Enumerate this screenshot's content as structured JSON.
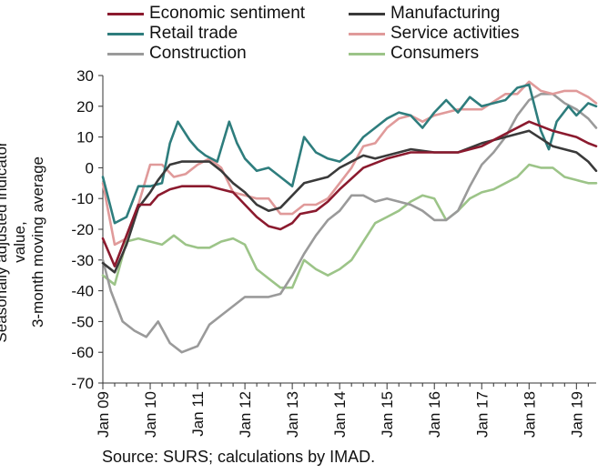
{
  "chart_data": {
    "type": "line",
    "xlabel": "",
    "ylabel": "Seasonally adjusted indicator value,",
    "ylabel2": "3-month moving average",
    "source": "Source: SURS; calculations by IMAD.",
    "ylim": [
      -70,
      30
    ],
    "yticks": [
      30,
      20,
      10,
      0,
      -10,
      -20,
      -30,
      -40,
      -50,
      -60,
      -70
    ],
    "xticks": [
      "Jan 09",
      "Jan 10",
      "Jan 11",
      "Jan 12",
      "Jan 13",
      "Jan 14",
      "Jan 15",
      "Jan 16",
      "Jan 17",
      "Jan 18",
      "Jan 19"
    ],
    "x_start": "Jan 09",
    "x_end": "Jun 19",
    "grid": false,
    "legend_position": "top",
    "series": [
      {
        "name": "Economic sentiment",
        "color": "#8b1a2e",
        "points": [
          [
            "Jan 09",
            -23
          ],
          [
            "Apr 09",
            -32
          ],
          [
            "Jul 09",
            -22
          ],
          [
            "Oct 09",
            -12
          ],
          [
            "Jan 10",
            -12
          ],
          [
            "Mar 10",
            -9
          ],
          [
            "Jun 10",
            -7
          ],
          [
            "Sep 10",
            -6
          ],
          [
            "Jan 11",
            -6
          ],
          [
            "Apr 11",
            -6
          ],
          [
            "Jul 11",
            -7
          ],
          [
            "Oct 11",
            -8
          ],
          [
            "Jan 12",
            -12
          ],
          [
            "Apr 12",
            -16
          ],
          [
            "Jul 12",
            -19
          ],
          [
            "Oct 12",
            -20
          ],
          [
            "Jan 13",
            -18
          ],
          [
            "Mar 13",
            -15
          ],
          [
            "Jul 13",
            -14
          ],
          [
            "Oct 13",
            -11
          ],
          [
            "Jan 14",
            -7
          ],
          [
            "Jul 14",
            0
          ],
          [
            "Jan 15",
            3
          ],
          [
            "Jul 15",
            5
          ],
          [
            "Jan 16",
            5
          ],
          [
            "Jul 16",
            5
          ],
          [
            "Jan 17",
            7
          ],
          [
            "Jul 17",
            11
          ],
          [
            "Jan 18",
            15
          ],
          [
            "Jul 18",
            12
          ],
          [
            "Jan 19",
            10
          ],
          [
            "Apr 19",
            8
          ],
          [
            "Jun 19",
            7
          ]
        ]
      },
      {
        "name": "Manufacturing",
        "color": "#3a3a3a",
        "points": [
          [
            "Jan 09",
            -31
          ],
          [
            "Apr 09",
            -34
          ],
          [
            "Jul 09",
            -25
          ],
          [
            "Oct 09",
            -13
          ],
          [
            "Jan 10",
            -8
          ],
          [
            "Mar 10",
            -4
          ],
          [
            "Jun 10",
            1
          ],
          [
            "Sep 10",
            2
          ],
          [
            "Jan 11",
            2
          ],
          [
            "Apr 11",
            2
          ],
          [
            "Jul 11",
            -1
          ],
          [
            "Oct 11",
            -5
          ],
          [
            "Jan 12",
            -8
          ],
          [
            "Apr 12",
            -12
          ],
          [
            "Jul 12",
            -14
          ],
          [
            "Oct 12",
            -13
          ],
          [
            "Jan 13",
            -9
          ],
          [
            "Apr 13",
            -5
          ],
          [
            "Jul 13",
            -4
          ],
          [
            "Oct 13",
            -3
          ],
          [
            "Jan 14",
            0
          ],
          [
            "Apr 14",
            2
          ],
          [
            "Jul 14",
            4
          ],
          [
            "Oct 14",
            3
          ],
          [
            "Jan 15",
            4
          ],
          [
            "Jul 15",
            6
          ],
          [
            "Jan 16",
            5
          ],
          [
            "Jul 16",
            5
          ],
          [
            "Jan 17",
            8
          ],
          [
            "Jul 17",
            10
          ],
          [
            "Jan 18",
            12
          ],
          [
            "Jul 18",
            7
          ],
          [
            "Oct 18",
            6
          ],
          [
            "Jan 19",
            5
          ],
          [
            "Apr 19",
            2
          ],
          [
            "Jun 19",
            -1
          ]
        ]
      },
      {
        "name": "Retail trade",
        "color": "#2e7d7d",
        "points": [
          [
            "Jan 09",
            -3
          ],
          [
            "Apr 09",
            -18
          ],
          [
            "Jul 09",
            -16
          ],
          [
            "Oct 09",
            -6
          ],
          [
            "Jan 10",
            -6
          ],
          [
            "Apr 10",
            -5
          ],
          [
            "Jun 10",
            8
          ],
          [
            "Aug 10",
            15
          ],
          [
            "Nov 10",
            9
          ],
          [
            "Jan 11",
            6
          ],
          [
            "Mar 11",
            4
          ],
          [
            "Jun 11",
            2
          ],
          [
            "Sep 11",
            15
          ],
          [
            "Nov 11",
            8
          ],
          [
            "Jan 12",
            3
          ],
          [
            "Apr 12",
            -1
          ],
          [
            "Jul 12",
            0
          ],
          [
            "Oct 12",
            -3
          ],
          [
            "Jan 13",
            -6
          ],
          [
            "Apr 13",
            10
          ],
          [
            "Jul 13",
            5
          ],
          [
            "Oct 13",
            3
          ],
          [
            "Jan 14",
            2
          ],
          [
            "Apr 14",
            5
          ],
          [
            "Jul 14",
            10
          ],
          [
            "Oct 14",
            13
          ],
          [
            "Jan 15",
            16
          ],
          [
            "Apr 15",
            18
          ],
          [
            "Jul 15",
            17
          ],
          [
            "Oct 15",
            13
          ],
          [
            "Jan 16",
            18
          ],
          [
            "Apr 16",
            22
          ],
          [
            "Jul 16",
            18
          ],
          [
            "Oct 16",
            23
          ],
          [
            "Jan 17",
            20
          ],
          [
            "Apr 17",
            21
          ],
          [
            "Jul 17",
            22
          ],
          [
            "Oct 17",
            26
          ],
          [
            "Jan 18",
            27
          ],
          [
            "Apr 18",
            12
          ],
          [
            "Jun 18",
            6
          ],
          [
            "Aug 18",
            15
          ],
          [
            "Nov 18",
            20
          ],
          [
            "Jan 19",
            17
          ],
          [
            "Apr 19",
            21
          ],
          [
            "Jun 19",
            20
          ]
        ]
      },
      {
        "name": "Service activities",
        "color": "#e09a9a",
        "points": [
          [
            "Jan 09",
            -5
          ],
          [
            "Apr 09",
            -25
          ],
          [
            "Jul 09",
            -23
          ],
          [
            "Oct 09",
            -12
          ],
          [
            "Jan 10",
            1
          ],
          [
            "Apr 10",
            1
          ],
          [
            "Jul 10",
            -3
          ],
          [
            "Oct 10",
            -2
          ],
          [
            "Jan 11",
            1
          ],
          [
            "Apr 11",
            3
          ],
          [
            "Jul 11",
            0
          ],
          [
            "Oct 11",
            -8
          ],
          [
            "Jan 12",
            -9
          ],
          [
            "Apr 12",
            -10
          ],
          [
            "Jul 12",
            -10
          ],
          [
            "Oct 12",
            -15
          ],
          [
            "Jan 13",
            -15
          ],
          [
            "Apr 13",
            -12
          ],
          [
            "Jul 13",
            -12
          ],
          [
            "Oct 13",
            -10
          ],
          [
            "Jan 14",
            -5
          ],
          [
            "Apr 14",
            0
          ],
          [
            "Jul 14",
            7
          ],
          [
            "Oct 14",
            8
          ],
          [
            "Jan 15",
            13
          ],
          [
            "Apr 15",
            16
          ],
          [
            "Jul 15",
            17
          ],
          [
            "Oct 15",
            15
          ],
          [
            "Jan 16",
            17
          ],
          [
            "Jul 16",
            19
          ],
          [
            "Jan 17",
            19
          ],
          [
            "Jul 17",
            24
          ],
          [
            "Oct 17",
            24
          ],
          [
            "Jan 18",
            28
          ],
          [
            "Apr 18",
            25
          ],
          [
            "Jul 18",
            24
          ],
          [
            "Oct 18",
            25
          ],
          [
            "Jan 19",
            25
          ],
          [
            "Apr 19",
            23
          ],
          [
            "Jun 19",
            21
          ]
        ]
      },
      {
        "name": "Construction",
        "color": "#9a9a9a",
        "points": [
          [
            "Jan 09",
            -30
          ],
          [
            "Mar 09",
            -40
          ],
          [
            "Jun 09",
            -50
          ],
          [
            "Sep 09",
            -53
          ],
          [
            "Dec 09",
            -55
          ],
          [
            "Mar 10",
            -50
          ],
          [
            "Jun 10",
            -57
          ],
          [
            "Sep 10",
            -60
          ],
          [
            "Jan 11",
            -58
          ],
          [
            "Apr 11",
            -51
          ],
          [
            "Jul 11",
            -48
          ],
          [
            "Oct 11",
            -45
          ],
          [
            "Jan 12",
            -42
          ],
          [
            "Apr 12",
            -42
          ],
          [
            "Jul 12",
            -42
          ],
          [
            "Oct 12",
            -41
          ],
          [
            "Jan 13",
            -35
          ],
          [
            "Apr 13",
            -28
          ],
          [
            "Jul 13",
            -22
          ],
          [
            "Oct 13",
            -17
          ],
          [
            "Jan 14",
            -14
          ],
          [
            "Apr 14",
            -9
          ],
          [
            "Jul 14",
            -9
          ],
          [
            "Oct 14",
            -11
          ],
          [
            "Jan 15",
            -10
          ],
          [
            "Apr 15",
            -11
          ],
          [
            "Jul 15",
            -12
          ],
          [
            "Oct 15",
            -14
          ],
          [
            "Jan 16",
            -17
          ],
          [
            "Apr 16",
            -17
          ],
          [
            "Jul 16",
            -14
          ],
          [
            "Oct 16",
            -6
          ],
          [
            "Jan 17",
            1
          ],
          [
            "Apr 17",
            5
          ],
          [
            "Jul 17",
            10
          ],
          [
            "Oct 17",
            17
          ],
          [
            "Jan 18",
            22
          ],
          [
            "Apr 18",
            24
          ],
          [
            "Jul 18",
            24
          ],
          [
            "Oct 18",
            21
          ],
          [
            "Jan 19",
            19
          ],
          [
            "Apr 19",
            16
          ],
          [
            "Jun 19",
            13
          ]
        ]
      },
      {
        "name": "Consumers",
        "color": "#9cc488",
        "points": [
          [
            "Jan 09",
            -35
          ],
          [
            "Apr 09",
            -38
          ],
          [
            "Jul 09",
            -24
          ],
          [
            "Oct 09",
            -23
          ],
          [
            "Jan 10",
            -24
          ],
          [
            "Apr 10",
            -25
          ],
          [
            "Jul 10",
            -22
          ],
          [
            "Oct 10",
            -25
          ],
          [
            "Jan 11",
            -26
          ],
          [
            "Apr 11",
            -26
          ],
          [
            "Jul 11",
            -24
          ],
          [
            "Oct 11",
            -23
          ],
          [
            "Jan 12",
            -25
          ],
          [
            "Apr 12",
            -33
          ],
          [
            "Jul 12",
            -36
          ],
          [
            "Oct 12",
            -39
          ],
          [
            "Jan 13",
            -39
          ],
          [
            "Apr 13",
            -30
          ],
          [
            "Jul 13",
            -33
          ],
          [
            "Oct 13",
            -35
          ],
          [
            "Jan 14",
            -33
          ],
          [
            "Apr 14",
            -30
          ],
          [
            "Jul 14",
            -24
          ],
          [
            "Oct 14",
            -18
          ],
          [
            "Jan 15",
            -16
          ],
          [
            "Apr 15",
            -14
          ],
          [
            "Jul 15",
            -11
          ],
          [
            "Oct 15",
            -9
          ],
          [
            "Jan 16",
            -10
          ],
          [
            "Apr 16",
            -17
          ],
          [
            "Jul 16",
            -14
          ],
          [
            "Oct 16",
            -10
          ],
          [
            "Jan 17",
            -8
          ],
          [
            "Apr 17",
            -7
          ],
          [
            "Jul 17",
            -5
          ],
          [
            "Oct 17",
            -3
          ],
          [
            "Jan 18",
            1
          ],
          [
            "Apr 18",
            0
          ],
          [
            "Jul 18",
            0
          ],
          [
            "Oct 18",
            -3
          ],
          [
            "Jan 19",
            -4
          ],
          [
            "Apr 19",
            -5
          ],
          [
            "Jun 19",
            -5
          ]
        ]
      }
    ]
  }
}
